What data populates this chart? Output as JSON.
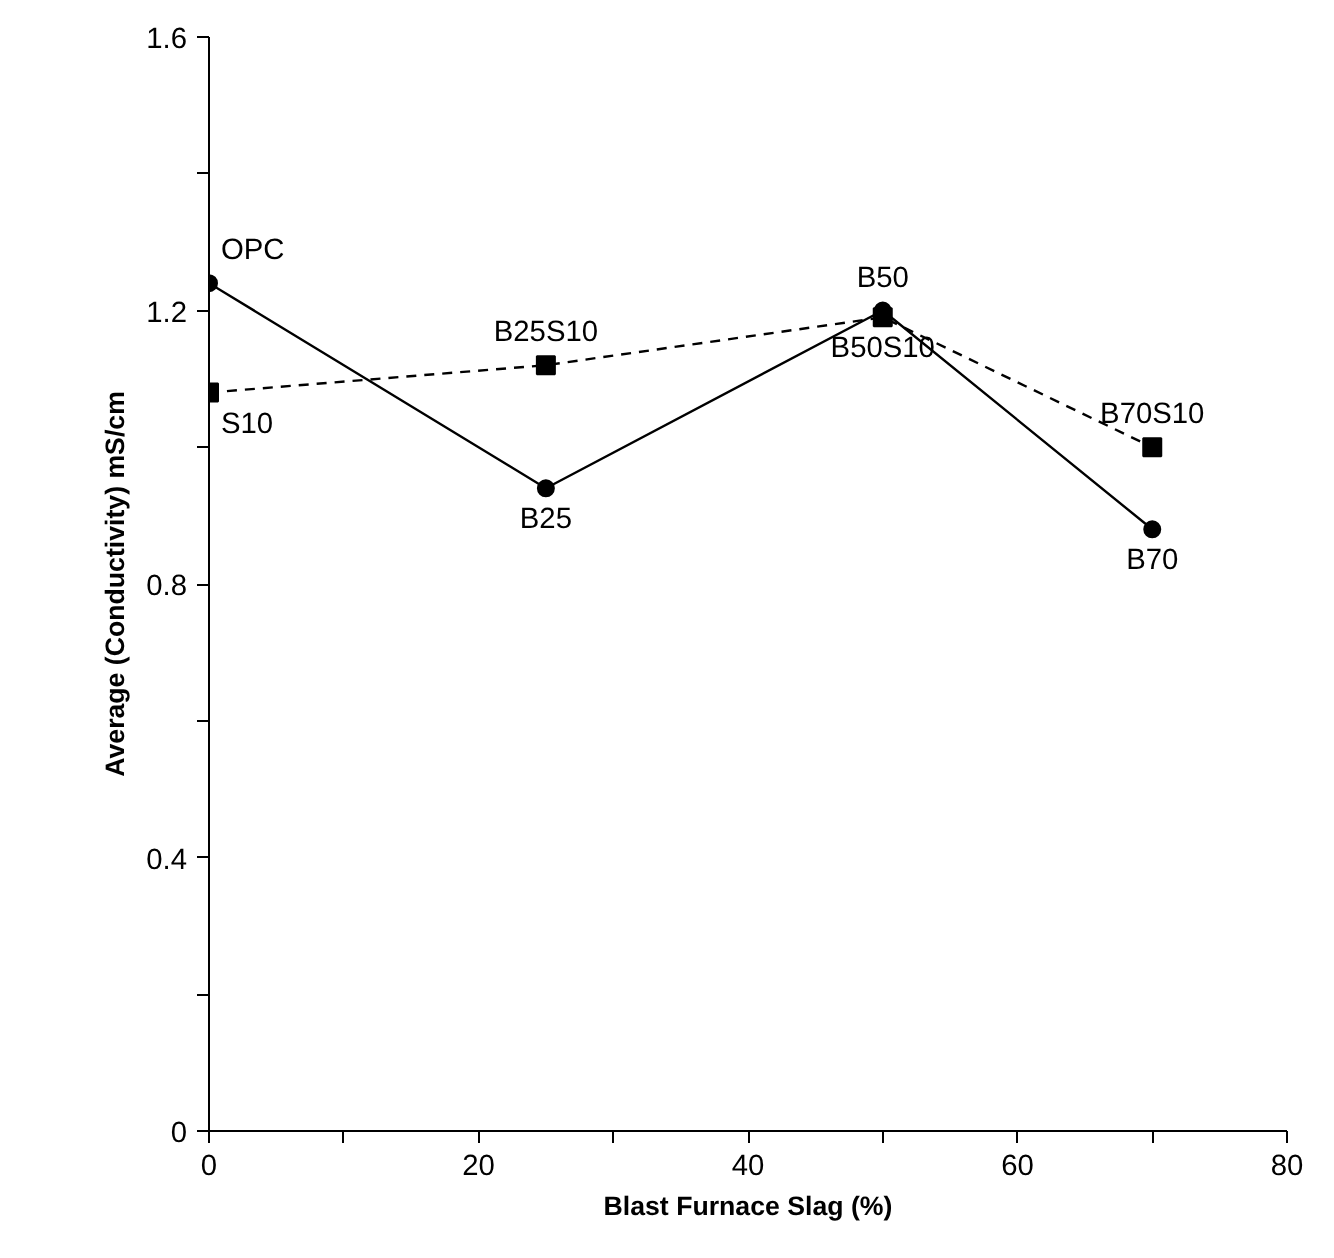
{
  "chart_data": {
    "type": "line",
    "xlabel": "Blast Furnace Slag (%)",
    "ylabel": "Average (Conductivity) mS/cm",
    "x": [
      0,
      25,
      50,
      70
    ],
    "series": [
      {
        "color": "#000000",
        "values": [
          1.24,
          0.94,
          1.2,
          0.88
        ],
        "marker": "circle",
        "line_style": "solid"
      },
      {
        "color": "#000000",
        "values": [
          1.08,
          1.12,
          1.19,
          1.0
        ],
        "marker": "square",
        "line_style": "dashed"
      }
    ],
    "xlim": [
      0,
      80
    ],
    "ylim": [
      0,
      1.6
    ],
    "xticks": [
      0,
      {
        "value": 10,
        "label": null
      },
      20,
      {
        "value": 30,
        "label": null
      },
      40,
      {
        "value": 50,
        "label": null
      },
      60,
      {
        "value": 70,
        "label": null
      },
      80
    ],
    "yticks": [
      0,
      {
        "value": 0.2,
        "label": null
      },
      0.4,
      {
        "value": 0.6,
        "label": null
      },
      0.8,
      {
        "value": 1.0,
        "label": null
      },
      1.2,
      {
        "value": 1.4,
        "label": null
      },
      1.6
    ],
    "annotations": [
      {
        "text": "OPC",
        "x": 0,
        "y": 1.24
      },
      {
        "text": "S10",
        "x": 0,
        "y": 1.08
      },
      {
        "text": "B25",
        "x": 25,
        "y": 0.94
      },
      {
        "text": "B25S10",
        "x": 25,
        "y": 1.12
      },
      {
        "text": "B50",
        "x": 50,
        "y": 1.2
      },
      {
        "text": "B50S10",
        "x": 50,
        "y": 1.19
      },
      {
        "text": "B70",
        "x": 70,
        "y": 0.88
      },
      {
        "text": "B70S10",
        "x": 70,
        "y": 1.0
      }
    ],
    "grid": false
  }
}
